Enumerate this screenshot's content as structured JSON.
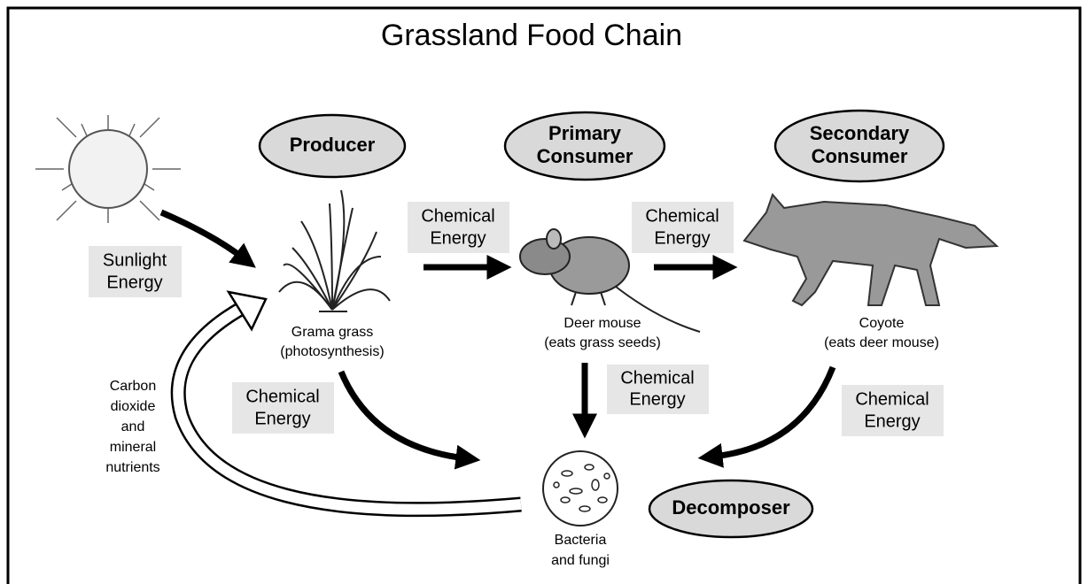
{
  "title": "Grassland Food Chain",
  "roles": {
    "producer": [
      "Producer"
    ],
    "primary": [
      "Primary",
      "Consumer"
    ],
    "secondary": [
      "Secondary",
      "Consumer"
    ],
    "decomposer": [
      "Decomposer"
    ]
  },
  "organisms": {
    "grass": [
      "Grama grass",
      "(photosynthesis)"
    ],
    "mouse": [
      "Deer mouse",
      "(eats grass seeds)"
    ],
    "coyote": [
      "Coyote",
      "(eats deer mouse)"
    ],
    "bacteria": [
      "Bacteria",
      "and fungi"
    ]
  },
  "energy": {
    "sunlight": [
      "Sunlight",
      "Energy"
    ],
    "grass_to_mouse": [
      "Chemical",
      "Energy"
    ],
    "mouse_to_coyote": [
      "Chemical",
      "Energy"
    ],
    "grass_to_decomposer": [
      "Chemical",
      "Energy"
    ],
    "mouse_to_decomposer": [
      "Chemical",
      "Energy"
    ],
    "coyote_to_decomposer": [
      "Chemical",
      "Energy"
    ]
  },
  "cycle": [
    "Carbon",
    "dioxide",
    "and",
    "mineral",
    "nutrients"
  ]
}
